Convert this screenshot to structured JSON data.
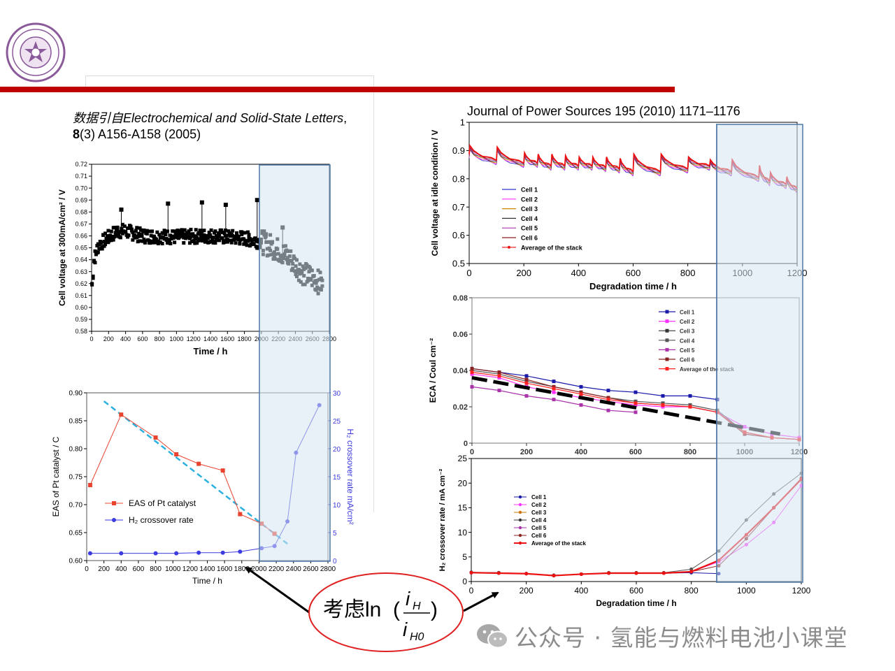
{
  "citation_left": {
    "prefix": "数据引自",
    "journal": "Electrochemical and Solid-State Letters",
    "vol": "8",
    "rest": "(3) A156-A158 (2005)"
  },
  "citation_right": "Journal of Power Sources 195 (2010) 1171–1176",
  "annotation": {
    "prefix": "考虑",
    "fn": "ln",
    "num": "i",
    "num_sub": "H",
    "den": "i",
    "den_sub": "H0"
  },
  "watermark": "公众号 · 氢能与燃料电池小课堂",
  "colors": {
    "red_bar": "#c00000",
    "highlight": "#d6e4f2",
    "highlight_border": "#4f79a8"
  },
  "chart_data": [
    {
      "id": "chartA",
      "type": "scatter",
      "xlabel": "Time / h",
      "ylabel": "Cell voltage at 300mA/cm² / V",
      "xlim": [
        0,
        2800
      ],
      "ylim": [
        0.58,
        0.72
      ],
      "xticks": [
        0,
        200,
        400,
        600,
        800,
        1000,
        1200,
        1400,
        1600,
        1800,
        2000,
        2200,
        2400,
        2600,
        2800
      ],
      "yticks": [
        0.58,
        0.59,
        0.6,
        0.61,
        0.62,
        0.63,
        0.64,
        0.65,
        0.66,
        0.67,
        0.68,
        0.69,
        0.7,
        0.71,
        0.72
      ],
      "highlight_x": [
        2000,
        2800
      ],
      "trend": [
        [
          0,
          0.615
        ],
        [
          30,
          0.64
        ],
        [
          80,
          0.652
        ],
        [
          150,
          0.656
        ],
        [
          300,
          0.664
        ],
        [
          400,
          0.664
        ],
        [
          600,
          0.66
        ],
        [
          1000,
          0.659
        ],
        [
          1400,
          0.66
        ],
        [
          1800,
          0.658
        ],
        [
          2000,
          0.655
        ],
        [
          2100,
          0.652
        ],
        [
          2200,
          0.648
        ],
        [
          2300,
          0.643
        ],
        [
          2400,
          0.636
        ],
        [
          2500,
          0.628
        ],
        [
          2600,
          0.625
        ],
        [
          2700,
          0.62
        ]
      ],
      "spikes": [
        [
          350,
          0.682
        ],
        [
          900,
          0.687
        ],
        [
          1300,
          0.688
        ],
        [
          1580,
          0.686
        ],
        [
          1950,
          0.69
        ],
        [
          2250,
          0.667
        ],
        [
          2050,
          0.66
        ]
      ]
    },
    {
      "id": "chartB",
      "type": "line",
      "xlabel": "Time / h",
      "ylabel": "EAS of Pt catalyst / C",
      "y2label": "H₂ crossover rate mA/cm²",
      "xlim": [
        0,
        2800
      ],
      "ylim": [
        0.6,
        0.9
      ],
      "y2lim": [
        0,
        30
      ],
      "xticks": [
        0,
        200,
        400,
        600,
        800,
        1000,
        1200,
        1400,
        1600,
        1800,
        2000,
        2200,
        2400,
        2600,
        2800
      ],
      "yticks": [
        0.6,
        0.65,
        0.7,
        0.75,
        0.8,
        0.85,
        0.9
      ],
      "y2ticks": [
        0,
        5,
        10,
        15,
        20,
        25,
        30
      ],
      "highlight_x": [
        2000,
        2800
      ],
      "series": [
        {
          "name": "EAS of Pt catalyst",
          "axis": "left",
          "color": "#e8432f",
          "marker": "square",
          "x": [
            40,
            400,
            800,
            1040,
            1300,
            1580,
            1780,
            2030,
            2180
          ],
          "y": [
            0.735,
            0.861,
            0.82,
            0.79,
            0.773,
            0.761,
            0.683,
            0.666,
            0.648
          ]
        },
        {
          "name": "H₂ crossover rate",
          "axis": "right",
          "color": "#3b3be0",
          "marker": "circle",
          "x": [
            40,
            400,
            800,
            1040,
            1300,
            1580,
            1780,
            2030,
            2180,
            2330,
            2430,
            2700
          ],
          "y": [
            1.3,
            1.3,
            1.3,
            1.3,
            1.4,
            1.4,
            1.6,
            2.2,
            2.6,
            7.0,
            19.3,
            27.8
          ]
        }
      ],
      "trend_dashed": {
        "color": "#2bb0e0",
        "x": [
          200,
          2330
        ],
        "y": [
          0.885,
          0.63
        ]
      }
    },
    {
      "id": "chartC",
      "type": "line",
      "xlabel": "Degradation time / h",
      "ylabel": "Cell voltage at idle condition / V",
      "xlim": [
        0,
        1200
      ],
      "ylim": [
        0.5,
        1.0
      ],
      "xticks": [
        0,
        200,
        400,
        600,
        800,
        1000,
        1200
      ],
      "yticks": [
        0.5,
        0.6,
        0.7,
        0.8,
        0.9,
        1.0
      ],
      "yticklabels": [
        "0.5",
        "0.6",
        "0.7",
        "0.8",
        "0.9",
        "1"
      ],
      "highlight_x": [
        900,
        1200
      ],
      "legend": [
        "Cell 1",
        "Cell 2",
        "Cell 3",
        "Cell 4",
        "Cell 5",
        "Cell 6",
        "Average of the stack"
      ],
      "legend_colors": [
        "#3333cc",
        "#ff33ff",
        "#cc8800",
        "#333333",
        "#aa33aa",
        "#8b2222",
        "#ee1111"
      ],
      "resets": [
        0,
        100,
        200,
        250,
        300,
        350,
        400,
        450,
        500,
        550,
        600,
        700,
        800,
        880,
        960,
        1060,
        1100,
        1160
      ],
      "tops": [
        0.91,
        0.905,
        0.885,
        0.88,
        0.88,
        0.875,
        0.87,
        0.87,
        0.87,
        0.865,
        0.88,
        0.88,
        0.87,
        0.86,
        0.86,
        0.84,
        0.815,
        0.8
      ],
      "bottoms": [
        0.88,
        0.86,
        0.85,
        0.85,
        0.84,
        0.84,
        0.84,
        0.84,
        0.835,
        0.83,
        0.82,
        0.82,
        0.83,
        0.84,
        0.82,
        0.8,
        0.785,
        0.775,
        0.76
      ]
    },
    {
      "id": "chartD",
      "type": "line",
      "xlabel": "",
      "ylabel": "ECA / Coul cm⁻²",
      "xlim": [
        0,
        1200
      ],
      "ylim": [
        0,
        0.08
      ],
      "xticks": [
        0,
        200,
        400,
        600,
        800,
        1000,
        1200
      ],
      "yticks": [
        0,
        0.02,
        0.04,
        0.06,
        0.08
      ],
      "yticklabels": [
        "0",
        "0.02",
        "0.04",
        "0.06",
        "0.08"
      ],
      "legend": [
        "Cell 1",
        "Cell 2",
        "Cell 3",
        "Cell 4",
        "Cell 5",
        "Cell 6",
        "Average of the stack"
      ],
      "legend_colors": [
        "#1a1aaa",
        "#ff33ff",
        "#333333",
        "#555555",
        "#aa33aa",
        "#8b2222",
        "#ff2222"
      ],
      "series": [
        {
          "color": "#1a1aaa",
          "x": [
            0,
            100,
            200,
            300,
            400,
            500,
            600,
            700,
            800,
            900
          ],
          "y": [
            0.041,
            0.039,
            0.037,
            0.034,
            0.031,
            0.029,
            0.028,
            0.026,
            0.026,
            0.024
          ]
        },
        {
          "color": "#ff33ff",
          "x": [
            0,
            100,
            200,
            300,
            400,
            500,
            600,
            700,
            800,
            900,
            1000,
            1100,
            1200
          ],
          "y": [
            0.038,
            0.036,
            0.031,
            0.028,
            0.025,
            0.023,
            0.021,
            0.02,
            0.02,
            0.017,
            0.009,
            0.005,
            0.003
          ]
        },
        {
          "color": "#555555",
          "x": [
            0,
            100,
            200,
            300,
            400,
            500,
            600,
            700,
            800,
            900,
            1000,
            1100,
            1200
          ],
          "y": [
            0.04,
            0.038,
            0.034,
            0.031,
            0.028,
            0.025,
            0.023,
            0.022,
            0.021,
            0.018,
            0.006,
            0.003,
            0.002
          ]
        },
        {
          "color": "#aa33aa",
          "x": [
            0,
            100,
            200,
            300,
            400,
            500,
            600
          ],
          "y": [
            0.031,
            0.029,
            0.026,
            0.024,
            0.021,
            0.018,
            0.017
          ]
        },
        {
          "color": "#8b2222",
          "x": [
            0,
            100,
            200,
            300,
            400,
            500,
            600,
            700,
            800,
            900,
            1000,
            1100,
            1200
          ],
          "y": [
            0.041,
            0.039,
            0.035,
            0.031,
            0.028,
            0.025,
            0.022,
            0.021,
            0.02,
            0.017,
            0.005,
            0.003,
            0.002
          ]
        },
        {
          "color": "#ff2222",
          "x": [
            0,
            100,
            200,
            300,
            400,
            500,
            600,
            700,
            800,
            900,
            1000,
            1100,
            1200
          ],
          "y": [
            0.039,
            0.037,
            0.033,
            0.03,
            0.027,
            0.024,
            0.022,
            0.021,
            0.02,
            0.017,
            0.006,
            0.003,
            0.002
          ]
        }
      ],
      "trend_dashed": {
        "color": "#000000",
        "x": [
          0,
          1130
        ],
        "y": [
          0.036,
          0.005
        ]
      },
      "highlight_x": [
        900,
        1200
      ]
    },
    {
      "id": "chartE",
      "type": "line",
      "xlabel": "Degradation time / h",
      "ylabel": "H₂ crossover rate / mA cm⁻²",
      "xlim": [
        0,
        1200
      ],
      "ylim": [
        0,
        25
      ],
      "xticks": [
        0,
        200,
        400,
        600,
        800,
        1000,
        1200
      ],
      "yticks": [
        0,
        5,
        10,
        15,
        20,
        25
      ],
      "legend": [
        "Cell 1",
        "Cell 2",
        "Cell 3",
        "Cell 4",
        "Cell 5",
        "Cell 6",
        "Average of the stack"
      ],
      "legend_colors": [
        "#1a1aaa",
        "#ff33ff",
        "#cc7700",
        "#333333",
        "#aa33aa",
        "#8b2222",
        "#ee1111"
      ],
      "series": [
        {
          "color": "#1a1aaa",
          "x": [
            0,
            100,
            200,
            300,
            400,
            500,
            600,
            700,
            800,
            900
          ],
          "y": [
            1.8,
            1.8,
            1.6,
            1.2,
            1.5,
            1.7,
            1.7,
            1.7,
            1.8,
            1.6
          ]
        },
        {
          "color": "#ff33ff",
          "x": [
            0,
            100,
            200,
            300,
            400,
            500,
            600,
            700,
            800,
            900,
            1000,
            1100,
            1200
          ],
          "y": [
            1.8,
            1.7,
            1.6,
            1.2,
            1.5,
            1.7,
            1.7,
            1.7,
            2.0,
            4.0,
            7.5,
            12.0,
            19.5
          ]
        },
        {
          "color": "#555555",
          "x": [
            0,
            100,
            200,
            300,
            400,
            500,
            600,
            700,
            800,
            900,
            1000,
            1100,
            1200
          ],
          "y": [
            1.9,
            1.8,
            1.6,
            1.3,
            1.5,
            1.8,
            1.8,
            1.8,
            2.5,
            6.2,
            12.5,
            17.8,
            22.0
          ]
        },
        {
          "color": "#8b2222",
          "x": [
            0,
            100,
            200,
            300,
            400,
            500,
            600,
            700,
            800,
            900,
            1000,
            1100,
            1200
          ],
          "y": [
            1.8,
            1.7,
            1.6,
            1.2,
            1.5,
            1.7,
            1.7,
            1.7,
            2.0,
            3.2,
            8.7,
            15.0,
            21.0
          ]
        },
        {
          "color": "#ee1111",
          "x": [
            0,
            100,
            200,
            300,
            400,
            500,
            600,
            700,
            800,
            900,
            1000,
            1100,
            1200
          ],
          "y": [
            1.8,
            1.7,
            1.6,
            1.2,
            1.5,
            1.7,
            1.7,
            1.7,
            2.0,
            4.3,
            9.5,
            15.0,
            20.8
          ]
        }
      ],
      "highlight_x": [
        900,
        1200
      ]
    }
  ]
}
